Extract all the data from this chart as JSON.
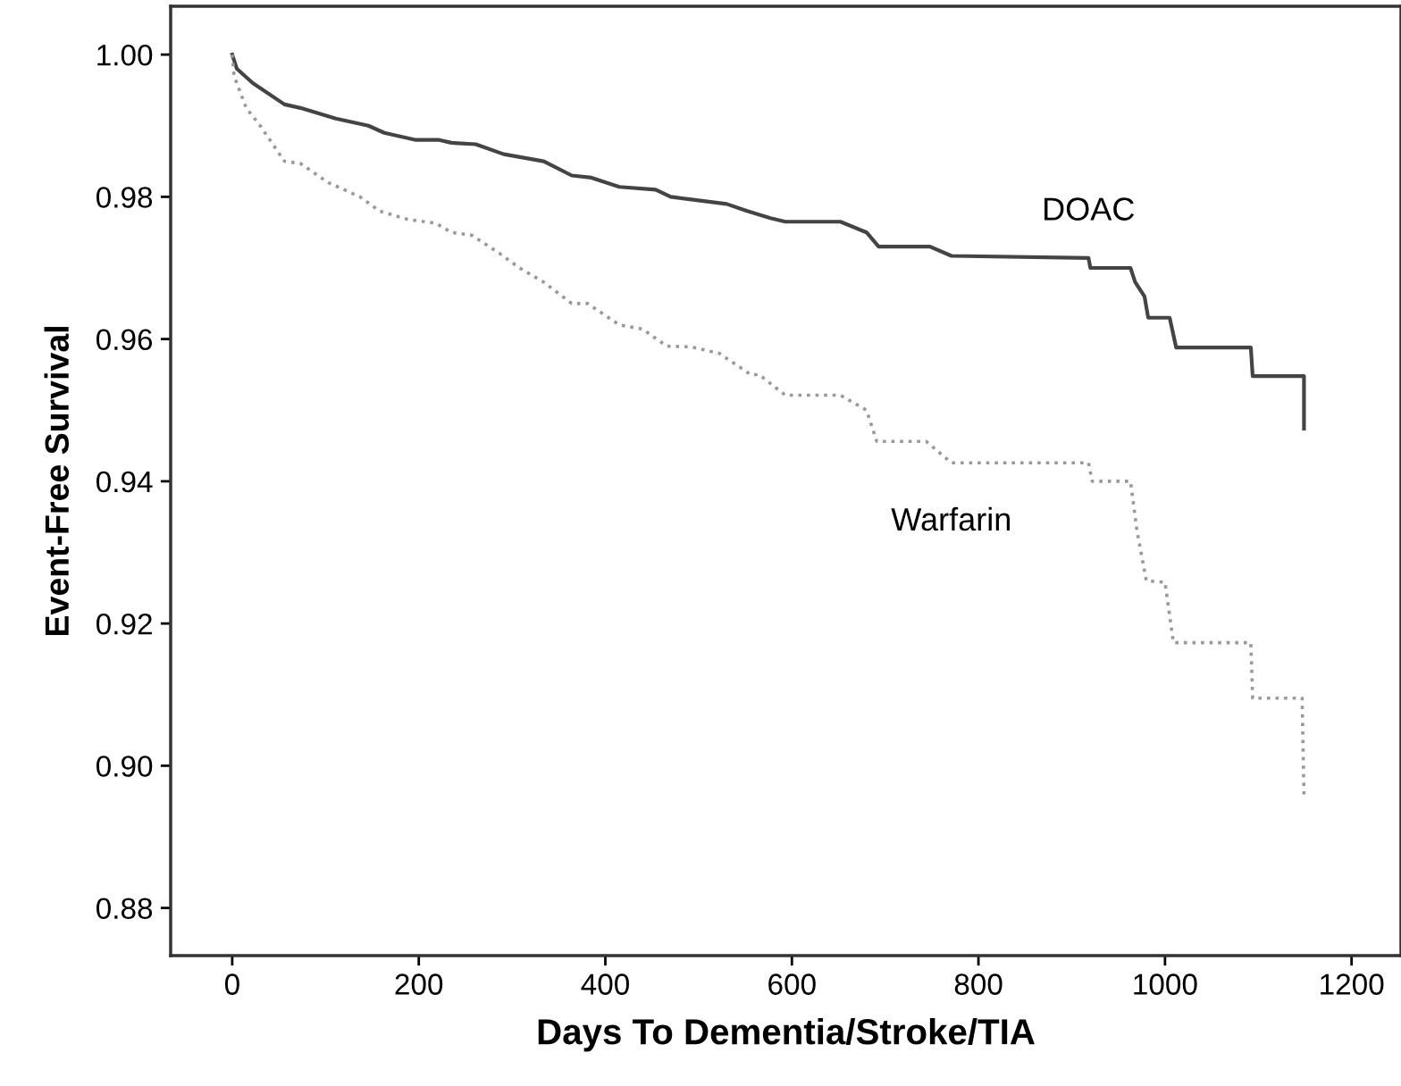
{
  "chart_data": {
    "type": "line",
    "xlabel": "Days To Dementia/Stroke/TIA",
    "ylabel": "Event-Free Survival",
    "xlim": [
      -66,
      1253
    ],
    "xticks": [
      0,
      200,
      400,
      600,
      800,
      1000,
      1200
    ],
    "ylim": [
      0.8733,
      1.0068
    ],
    "yticks": [
      {
        "value": 0.88,
        "label": "0.88"
      },
      {
        "value": 0.9,
        "label": "0.90"
      },
      {
        "value": 0.92,
        "label": "0.92"
      },
      {
        "value": 0.94,
        "label": "0.94"
      },
      {
        "value": 0.96,
        "label": "0.96"
      },
      {
        "value": 0.98,
        "label": "0.98"
      },
      {
        "value": 1.0,
        "label": "1.00"
      }
    ],
    "grid": false,
    "legend": false,
    "series": [
      {
        "name": "DOAC",
        "color": "#444444",
        "line_style": "solid",
        "x": [
          0,
          5,
          22,
          56,
          73,
          111,
          146,
          163,
          197,
          222,
          235,
          261,
          291,
          334,
          364,
          385,
          415,
          454,
          470,
          530,
          552,
          577,
          593,
          652,
          680,
          693,
          748,
          771,
          918,
          920,
          963,
          968,
          978,
          982,
          1005,
          1012,
          1092,
          1094,
          1149,
          1149
        ],
        "values": [
          1.0,
          0.998,
          0.996,
          0.993,
          0.9925,
          0.991,
          0.99,
          0.989,
          0.988,
          0.988,
          0.9876,
          0.9874,
          0.986,
          0.985,
          0.983,
          0.9827,
          0.9814,
          0.981,
          0.98,
          0.979,
          0.978,
          0.977,
          0.9765,
          0.9765,
          0.975,
          0.973,
          0.973,
          0.9717,
          0.9714,
          0.97,
          0.97,
          0.968,
          0.966,
          0.963,
          0.963,
          0.9588,
          0.9588,
          0.9548,
          0.9548,
          0.9474
        ]
      },
      {
        "name": "Warfarin",
        "color": "#999999",
        "line_style": "dotted",
        "x": [
          0,
          2,
          15,
          30,
          56,
          73,
          103,
          137,
          158,
          189,
          218,
          235,
          257,
          287,
          308,
          334,
          364,
          381,
          415,
          440,
          466,
          492,
          522,
          556,
          565,
          593,
          652,
          680,
          691,
          744,
          771,
          918,
          922,
          963,
          970,
          980,
          1000,
          1009,
          1092,
          1094,
          1147,
          1149
        ],
        "values": [
          1.0,
          0.997,
          0.9925,
          0.99,
          0.985,
          0.9847,
          0.982,
          0.98,
          0.978,
          0.9768,
          0.9763,
          0.975,
          0.9746,
          0.972,
          0.97,
          0.968,
          0.965,
          0.965,
          0.962,
          0.9614,
          0.959,
          0.9589,
          0.958,
          0.955,
          0.955,
          0.9521,
          0.9521,
          0.95,
          0.9456,
          0.9456,
          0.9426,
          0.9426,
          0.94,
          0.94,
          0.933,
          0.926,
          0.9258,
          0.9173,
          0.9173,
          0.9095,
          0.9095,
          0.8957
        ]
      }
    ]
  }
}
